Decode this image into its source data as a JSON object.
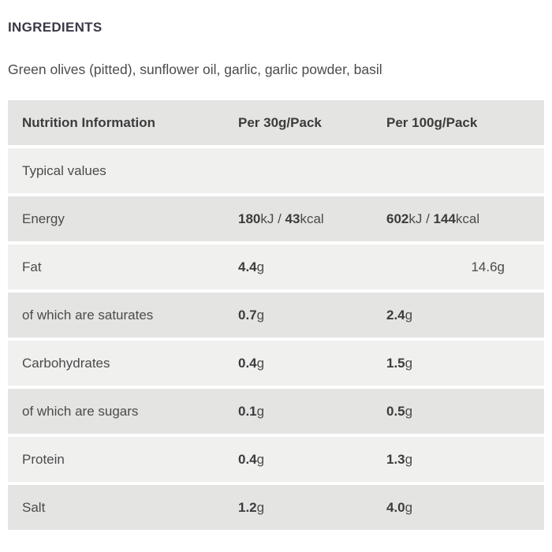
{
  "colors": {
    "page_bg": "#ffffff",
    "row_dark": "#e4e4e3",
    "row_light": "#f0f0ef",
    "heading_text": "#3a3947",
    "body_text": "#4b4b4b",
    "bold_text": "#3c3c3c"
  },
  "ingredients": {
    "heading": "INGREDIENTS",
    "text": "Green olives (pitted), sunflower oil, garlic, garlic powder, basil"
  },
  "nutrition_table": {
    "headers": [
      {
        "label": "Nutrition Information"
      },
      {
        "label": "Per 30g/Pack"
      },
      {
        "label": "Per 100g/Pack"
      }
    ],
    "rows": [
      {
        "label": "Typical values",
        "shade": "light",
        "per30": [],
        "per100": []
      },
      {
        "label": "Energy",
        "shade": "dark",
        "per30": [
          {
            "t": "180",
            "b": true
          },
          {
            "t": "kJ / ",
            "b": false
          },
          {
            "t": "43",
            "b": true
          },
          {
            "t": "kcal",
            "b": false
          }
        ],
        "per100": [
          {
            "t": "602",
            "b": true
          },
          {
            "t": "kJ / ",
            "b": false
          },
          {
            "t": "144",
            "b": true
          },
          {
            "t": "kcal",
            "b": false
          }
        ]
      },
      {
        "label": "Fat",
        "shade": "light",
        "per30": [
          {
            "t": "4.4",
            "b": true
          },
          {
            "t": "g",
            "b": false
          }
        ],
        "per100": [
          {
            "t": "14.6g",
            "b": false
          }
        ],
        "per100_align": "right"
      },
      {
        "label": "of which are saturates",
        "shade": "dark",
        "per30": [
          {
            "t": "0.7",
            "b": true
          },
          {
            "t": "g",
            "b": false
          }
        ],
        "per100": [
          {
            "t": "2.4",
            "b": true
          },
          {
            "t": "g",
            "b": false
          }
        ]
      },
      {
        "label": "Carbohydrates",
        "shade": "light",
        "per30": [
          {
            "t": "0.4",
            "b": true
          },
          {
            "t": "g",
            "b": false
          }
        ],
        "per100": [
          {
            "t": "1.5",
            "b": true
          },
          {
            "t": "g",
            "b": false
          }
        ]
      },
      {
        "label": "of which are sugars",
        "shade": "dark",
        "per30": [
          {
            "t": "0.1",
            "b": true
          },
          {
            "t": "g",
            "b": false
          }
        ],
        "per100": [
          {
            "t": "0.5",
            "b": true
          },
          {
            "t": "g",
            "b": false
          }
        ]
      },
      {
        "label": "Protein",
        "shade": "light",
        "per30": [
          {
            "t": "0.4",
            "b": true
          },
          {
            "t": "g",
            "b": false
          }
        ],
        "per100": [
          {
            "t": "1.3",
            "b": true
          },
          {
            "t": "g",
            "b": false
          }
        ]
      },
      {
        "label": "Salt",
        "shade": "dark",
        "per30": [
          {
            "t": "1.2",
            "b": true
          },
          {
            "t": "g",
            "b": false
          }
        ],
        "per100": [
          {
            "t": "4.0",
            "b": true
          },
          {
            "t": "g",
            "b": false
          }
        ]
      }
    ]
  }
}
